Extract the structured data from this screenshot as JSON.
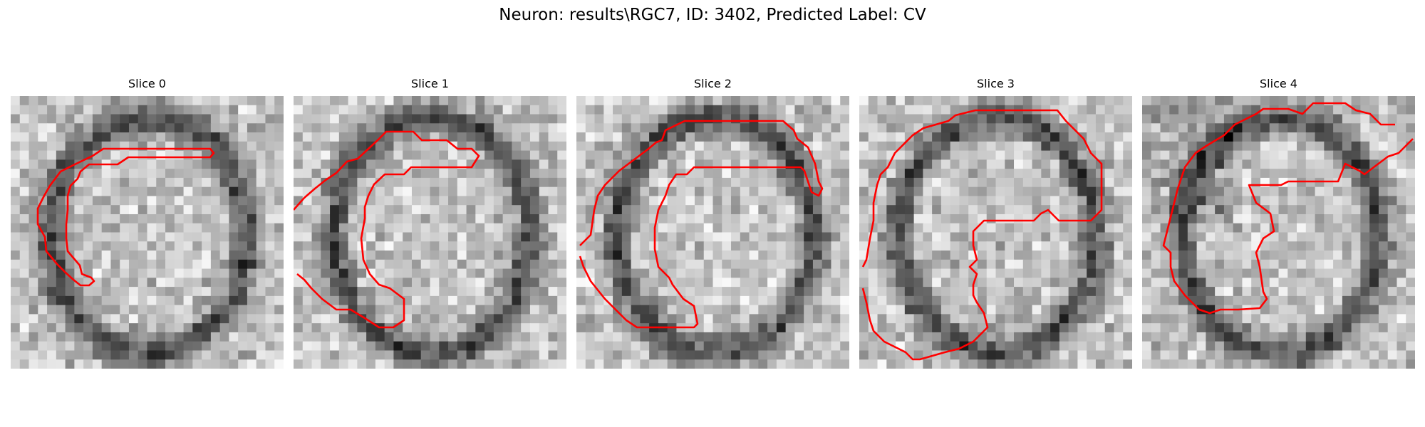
{
  "figure": {
    "title": "Neuron: results\\RGC7, ID: 3402, Predicted Label: CV"
  },
  "panels": [
    {
      "title": "Slice 0",
      "pattern": "ring",
      "seed": 11
    },
    {
      "title": "Slice 1",
      "pattern": "ring",
      "seed": 23
    },
    {
      "title": "Slice 2",
      "pattern": "ring",
      "seed": 37
    },
    {
      "title": "Slice 3",
      "pattern": "ring",
      "seed": 41
    },
    {
      "title": "Slice 4",
      "pattern": "ring-dark",
      "seed": 59
    }
  ],
  "image": {
    "grid_size": 30,
    "colormap": "gray"
  },
  "contour": {
    "color": "#ff0000"
  }
}
